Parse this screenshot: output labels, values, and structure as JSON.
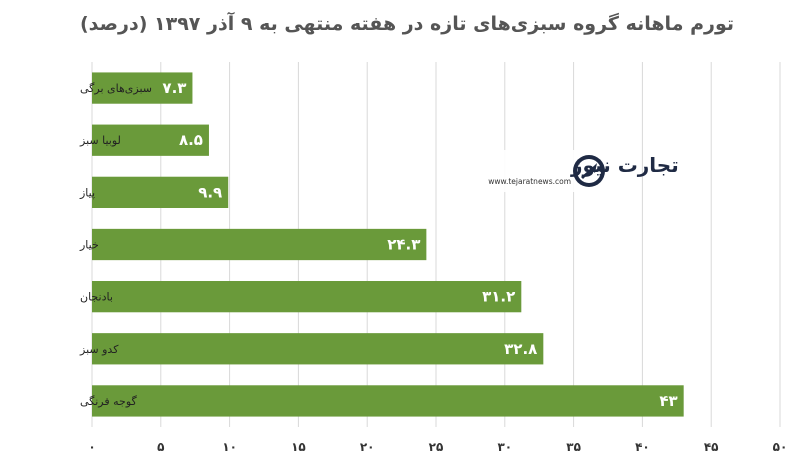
{
  "chart_data": {
    "type": "bar",
    "orientation": "horizontal",
    "title": "تورم ماهانه گروه سبزی‌های تازه در هفته منتهی به ۹ آذر ۱۳۹۷ (درصد)",
    "categories": [
      "سبزی‌های برگی",
      "لوبیا سبز",
      "پیاز",
      "خیار",
      "بادنجان",
      "کدو سبز",
      "گوجه فرنگی"
    ],
    "values": [
      7.3,
      8.5,
      9.9,
      24.3,
      31.2,
      32.8,
      43
    ],
    "value_labels": [
      "۷.۳",
      "۸.۵",
      "۹.۹",
      "۲۴.۳",
      "۳۱.۲",
      "۳۲.۸",
      "۴۳"
    ],
    "xlim": [
      0,
      50
    ],
    "x_ticks": [
      0,
      5,
      10,
      15,
      20,
      25,
      30,
      35,
      40,
      45,
      50
    ],
    "x_tick_labels": [
      "۰",
      "۵",
      "۱۰",
      "۱۵",
      "۲۰",
      "۲۵",
      "۳۰",
      "۳۵",
      "۴۰",
      "۴۵",
      "۵۰"
    ],
    "grid": true,
    "bar_color": "#6a9a3a",
    "grid_color": "#d9d9d9",
    "xlabel": "",
    "ylabel": ""
  },
  "watermark": {
    "brand": "تجارت نیوز",
    "url": "www.tejaratnews.com",
    "accent_color": "#c0392b",
    "dark_color": "#1f2a44",
    "icon": "arrow-logo-icon"
  }
}
